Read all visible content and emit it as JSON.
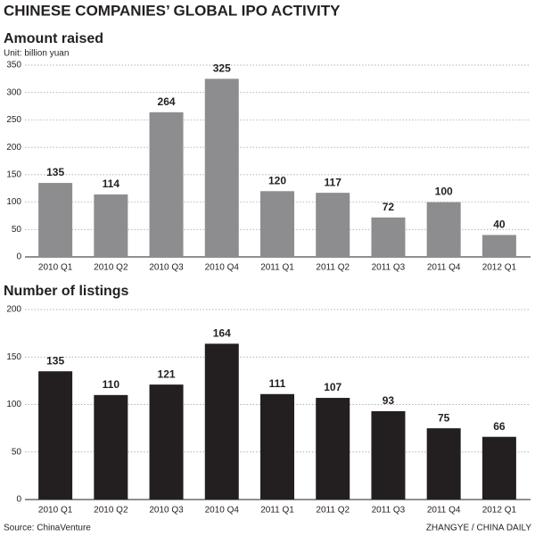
{
  "header": {
    "title": "CHINESE COMPANIES’ GLOBAL IPO ACTIVITY"
  },
  "chart_data": [
    {
      "type": "bar",
      "title": "Amount raised",
      "subtitle": "Unit: billion yuan",
      "categories": [
        "2010 Q1",
        "2010 Q2",
        "2010 Q3",
        "2010 Q4",
        "2011 Q1",
        "2011 Q2",
        "2011 Q3",
        "2011 Q4",
        "2012 Q1"
      ],
      "values": [
        135,
        114,
        264,
        325,
        120,
        117,
        72,
        100,
        40
      ],
      "color": "#8d8d8f",
      "ylim": [
        0,
        350
      ],
      "yticks": [
        0,
        50,
        100,
        150,
        200,
        250,
        300,
        350
      ],
      "grid": true
    },
    {
      "type": "bar",
      "title": "Number of listings",
      "categories": [
        "2010 Q1",
        "2010 Q2",
        "2010 Q3",
        "2010 Q4",
        "2011 Q1",
        "2011 Q2",
        "2011 Q3",
        "2011 Q4",
        "2012 Q1"
      ],
      "values": [
        135,
        110,
        121,
        164,
        111,
        107,
        93,
        75,
        66
      ],
      "color": "#231f20",
      "ylim": [
        0,
        200
      ],
      "yticks": [
        0,
        50,
        100,
        150,
        200
      ],
      "grid": true
    }
  ],
  "footer": {
    "source": "Source: ChinaVenture",
    "credit": "ZHANGYE / CHINA DAILY"
  }
}
